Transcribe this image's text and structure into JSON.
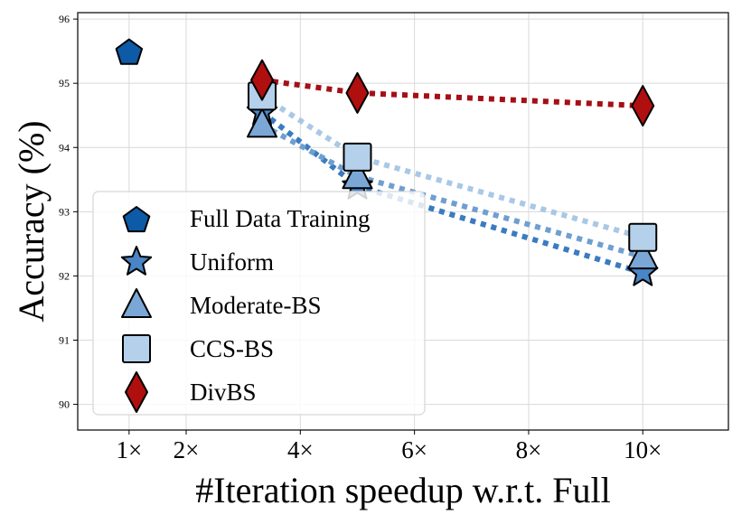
{
  "chart_data": {
    "type": "scatter",
    "xlabel": "#Iteration speedup w.r.t. Full",
    "ylabel": "Accuracy (%)",
    "xlim": [
      0.1,
      11.5
    ],
    "ylim": [
      89.6,
      96.1
    ],
    "x_ticks": [
      1,
      2,
      4,
      6,
      8,
      10
    ],
    "x_tick_labels": [
      "1×",
      "2×",
      "4×",
      "6×",
      "8×",
      "10×"
    ],
    "y_ticks": [
      90,
      91,
      92,
      93,
      94,
      95,
      96
    ],
    "y_tick_labels": [
      "90",
      "91",
      "92",
      "93",
      "94",
      "95",
      "96"
    ],
    "grid": true,
    "legend_position": "lower-left",
    "series": [
      {
        "name": "Full Data Training",
        "marker": "pentagon",
        "color": "#0d5aa7",
        "line": false,
        "points": [
          {
            "x": 1,
            "y": 95.5
          }
        ]
      },
      {
        "name": "Uniform",
        "marker": "star",
        "color": "#4a86c5",
        "line": true,
        "line_color": "#3b7bbf",
        "points": [
          {
            "x": 3.33,
            "y": 94.55
          },
          {
            "x": 5,
            "y": 93.4
          },
          {
            "x": 10,
            "y": 92.05
          }
        ]
      },
      {
        "name": "Moderate-BS",
        "marker": "triangle",
        "color": "#7ba7d7",
        "line": true,
        "line_color": "#6f9fd0",
        "points": [
          {
            "x": 3.33,
            "y": 94.35
          },
          {
            "x": 5,
            "y": 93.55
          },
          {
            "x": 10,
            "y": 92.3
          }
        ]
      },
      {
        "name": "CCS-BS",
        "marker": "square",
        "color": "#b5d0ea",
        "line": true,
        "line_color": "#a9c8e6",
        "points": [
          {
            "x": 3.33,
            "y": 94.8
          },
          {
            "x": 5,
            "y": 93.85
          },
          {
            "x": 10,
            "y": 92.6
          }
        ]
      },
      {
        "name": "DivBS",
        "marker": "diamond",
        "color": "#b00f0f",
        "line": true,
        "line_color": "#a50f15",
        "points": [
          {
            "x": 3.33,
            "y": 95.05
          },
          {
            "x": 5,
            "y": 94.85
          },
          {
            "x": 10,
            "y": 94.65
          }
        ]
      }
    ]
  }
}
